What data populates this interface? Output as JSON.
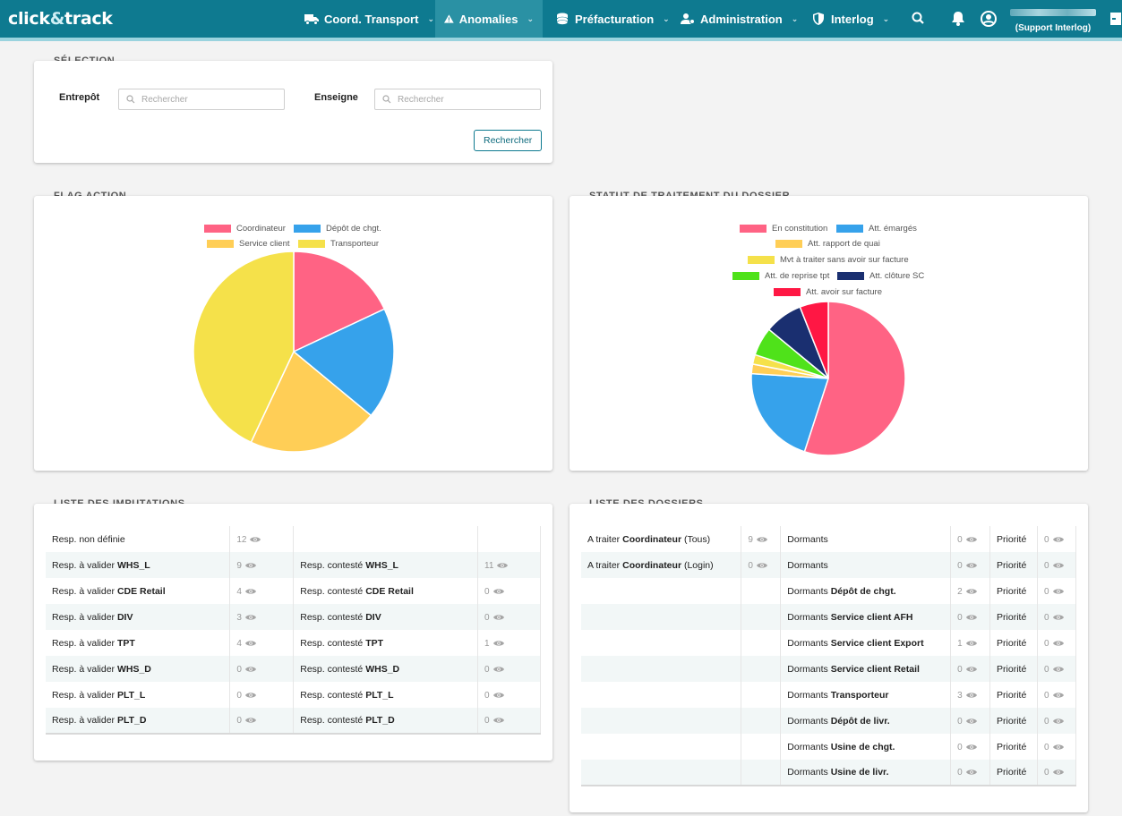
{
  "brand": {
    "name_a": "click",
    "name_amp": "&",
    "name_b": "track"
  },
  "nav": {
    "items": [
      {
        "label": "Coord. Transport",
        "icon": "truck-icon"
      },
      {
        "label": "Anomalies",
        "icon": "warning-icon"
      },
      {
        "label": "Préfacturation",
        "icon": "coins-icon"
      },
      {
        "label": "Administration",
        "icon": "users-cog-icon"
      },
      {
        "label": "Interlog",
        "icon": "shield-icon"
      }
    ],
    "active": "Anomalies",
    "user_role": "(Support Interlog)"
  },
  "selection": {
    "title": "SÉLECTION",
    "entrepot_label": "Entrepôt",
    "enseigne_label": "Enseigne",
    "search_placeholder": "Rechercher",
    "button_label": "Rechercher"
  },
  "flag_action": {
    "title": "FLAG ACTION",
    "legend": [
      "Coordinateur",
      "Dépôt de chgt.",
      "Service client",
      "Transporteur"
    ]
  },
  "statut": {
    "title": "STATUT DE TRAITEMENT DU DOSSIER",
    "legend": [
      "En constitution",
      "Att. émargés",
      "Att. rapport de quai",
      "Mvt à traiter sans avoir sur facture",
      "Att. de reprise tpt",
      "Att. clôture SC",
      "Att. avoir sur facture"
    ]
  },
  "chart_data": [
    {
      "type": "pie",
      "title": "",
      "categories": [
        "Coordinateur",
        "Dépôt de chgt.",
        "Service client",
        "Transporteur"
      ],
      "values": [
        18,
        18,
        21,
        43
      ],
      "colors": [
        "#ff6384",
        "#36a2eb",
        "#ffce56",
        "#f5e14a"
      ]
    },
    {
      "type": "pie",
      "title": "",
      "categories": [
        "En constitution",
        "Att. émargés",
        "Att. rapport de quai",
        "Mvt à traiter sans avoir sur facture",
        "Att. de reprise tpt",
        "Att. clôture SC",
        "Att. avoir sur facture"
      ],
      "values": [
        55,
        21,
        2,
        2,
        6,
        8,
        6
      ],
      "colors": [
        "#ff6384",
        "#36a2eb",
        "#ffce56",
        "#f5e14a",
        "#4fe21a",
        "#1a2f70",
        "#ff1744"
      ]
    }
  ],
  "imputations": {
    "title": "LISTE DES IMPUTATIONS",
    "rows": [
      {
        "l_pre": "Resp. non définie",
        "l_bold": "",
        "l_val": "12",
        "r_pre": "",
        "r_bold": "",
        "r_val": ""
      },
      {
        "l_pre": "Resp. à valider ",
        "l_bold": "WHS_L",
        "l_val": "9",
        "r_pre": "Resp. contesté ",
        "r_bold": "WHS_L",
        "r_val": "11"
      },
      {
        "l_pre": "Resp. à valider ",
        "l_bold": "CDE Retail",
        "l_val": "4",
        "r_pre": "Resp. contesté ",
        "r_bold": "CDE Retail",
        "r_val": "0"
      },
      {
        "l_pre": "Resp. à valider ",
        "l_bold": "DIV",
        "l_val": "3",
        "r_pre": "Resp. contesté ",
        "r_bold": "DIV",
        "r_val": "0"
      },
      {
        "l_pre": "Resp. à valider ",
        "l_bold": "TPT",
        "l_val": "4",
        "r_pre": "Resp. contesté ",
        "r_bold": "TPT",
        "r_val": "1"
      },
      {
        "l_pre": "Resp. à valider ",
        "l_bold": "WHS_D",
        "l_val": "0",
        "r_pre": "Resp. contesté ",
        "r_bold": "WHS_D",
        "r_val": "0"
      },
      {
        "l_pre": "Resp. à valider ",
        "l_bold": "PLT_L",
        "l_val": "0",
        "r_pre": "Resp. contesté ",
        "r_bold": "PLT_L",
        "r_val": "0"
      },
      {
        "l_pre": "Resp. à valider ",
        "l_bold": "PLT_D",
        "l_val": "0",
        "r_pre": "Resp. contesté ",
        "r_bold": "PLT_D",
        "r_val": "0"
      }
    ]
  },
  "dossiers": {
    "title": "LISTE DES DOSSIERS",
    "rows": [
      {
        "a_pre": "A traiter ",
        "a_bold": "Coordinateur",
        "a_post": " (Tous)",
        "a_val": "9",
        "d_pre": "Dormants",
        "d_bold": "",
        "d_val": "0",
        "p_label": "Priorité",
        "p_val": "0"
      },
      {
        "a_pre": "A traiter ",
        "a_bold": "Coordinateur",
        "a_post": " (Login)",
        "a_val": "0",
        "d_pre": "Dormants",
        "d_bold": "",
        "d_val": "0",
        "p_label": "Priorité",
        "p_val": "0"
      },
      {
        "a_pre": "",
        "a_bold": "",
        "a_post": "",
        "a_val": "",
        "d_pre": "Dormants ",
        "d_bold": "Dépôt de chgt.",
        "d_val": "2",
        "p_label": "Priorité",
        "p_val": "0"
      },
      {
        "a_pre": "",
        "a_bold": "",
        "a_post": "",
        "a_val": "",
        "d_pre": "Dormants ",
        "d_bold": "Service client AFH",
        "d_val": "0",
        "p_label": "Priorité",
        "p_val": "0"
      },
      {
        "a_pre": "",
        "a_bold": "",
        "a_post": "",
        "a_val": "",
        "d_pre": "Dormants ",
        "d_bold": "Service client Export",
        "d_val": "1",
        "p_label": "Priorité",
        "p_val": "0"
      },
      {
        "a_pre": "",
        "a_bold": "",
        "a_post": "",
        "a_val": "",
        "d_pre": "Dormants ",
        "d_bold": "Service client Retail",
        "d_val": "0",
        "p_label": "Priorité",
        "p_val": "0"
      },
      {
        "a_pre": "",
        "a_bold": "",
        "a_post": "",
        "a_val": "",
        "d_pre": "Dormants ",
        "d_bold": "Transporteur",
        "d_val": "3",
        "p_label": "Priorité",
        "p_val": "0"
      },
      {
        "a_pre": "",
        "a_bold": "",
        "a_post": "",
        "a_val": "",
        "d_pre": "Dormants ",
        "d_bold": "Dépôt de livr.",
        "d_val": "0",
        "p_label": "Priorité",
        "p_val": "0"
      },
      {
        "a_pre": "",
        "a_bold": "",
        "a_post": "",
        "a_val": "",
        "d_pre": "Dormants ",
        "d_bold": "Usine de chgt.",
        "d_val": "0",
        "p_label": "Priorité",
        "p_val": "0"
      },
      {
        "a_pre": "",
        "a_bold": "",
        "a_post": "",
        "a_val": "",
        "d_pre": "Dormants ",
        "d_bold": "Usine de livr.",
        "d_val": "0",
        "p_label": "Priorité",
        "p_val": "0"
      }
    ]
  }
}
